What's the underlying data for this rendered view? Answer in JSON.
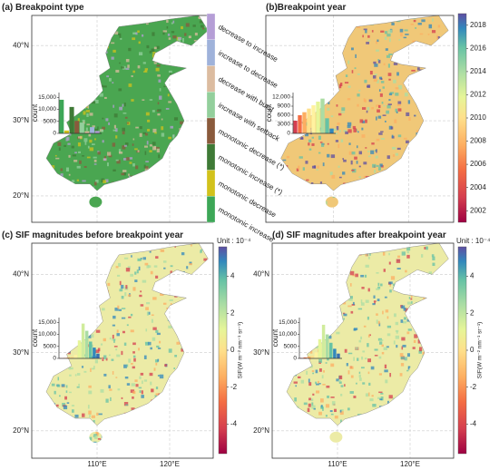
{
  "lat_labels": [
    "40°N",
    "30°N",
    "20°N"
  ],
  "lon_labels": [
    "110°E",
    "120°E"
  ],
  "panels": [
    {
      "title": "(a) Breakpoint type",
      "legend": [
        {
          "label": "decrease to increase",
          "color": "#b59ed6"
        },
        {
          "label": "increase to decrease",
          "color": "#9fb2da"
        },
        {
          "label": "decrease with burst",
          "color": "#dcbca0"
        },
        {
          "label": "increase with setback",
          "color": "#93cf9c"
        },
        {
          "label": "monotonic decrease (*)",
          "color": "#8a5a3c"
        },
        {
          "label": "monotonic increase (*)",
          "color": "#3f7a36"
        },
        {
          "label": "monotonic decrease",
          "color": "#d2c21c"
        },
        {
          "label": "monotonic increase",
          "color": "#3da757"
        }
      ],
      "hist": {
        "ylabel": "count",
        "ylim": [
          0,
          17000
        ],
        "yticks": [
          0,
          5000,
          {
            "value": 10000,
            "label": "10,000"
          },
          {
            "value": 15000,
            "label": "15,000"
          }
        ],
        "values": [
          14000,
          1200,
          11000,
          5200,
          4500,
          900,
          2600,
          1000
        ],
        "colors": [
          "#3da757",
          "#d2c21c",
          "#3f7a36",
          "#8a5a3c",
          "#93cf9c",
          "#dcbca0",
          "#9fb2da",
          "#b59ed6"
        ]
      }
    },
    {
      "title": "(b)Breakpoint year",
      "hist": {
        "ylabel": "count",
        "ylim": [
          0,
          13500
        ],
        "yticks": [
          0,
          3000,
          6000,
          9000,
          {
            "value": 12000,
            "label": "12,000"
          }
        ],
        "values": [
          4200,
          6000,
          7000,
          8200,
          9300,
          10500,
          11500,
          5000,
          1600
        ],
        "colors": [
          "#d53e4f",
          "#f46d43",
          "#fdae61",
          "#fee08b",
          "#fff2a0",
          "#e6f598",
          "#abdda4",
          "#66c2a5",
          "#3288bd"
        ]
      }
    },
    {
      "title": "(c) SIF magnitudes before breakpoint year",
      "hist": {
        "ylabel": "count",
        "ylim": [
          0,
          17000
        ],
        "yticks": [
          0,
          5000,
          {
            "value": 10000,
            "label": "10,000"
          },
          {
            "value": 15000,
            "label": "15,000"
          }
        ],
        "values": [
          100,
          200,
          400,
          700,
          1500,
          7500,
          14500,
          11500,
          7000,
          4500,
          2000
        ],
        "colors": [
          "#d53e4f",
          "#f46d43",
          "#fdae61",
          "#fee08b",
          "#fff2a0",
          "#e6f598",
          "#d0ec9c",
          "#abdda4",
          "#66c2a5",
          "#3288bd",
          "#3a6fb0"
        ]
      }
    },
    {
      "title": "(d) SIF magnitudes after breakpoint year",
      "hist": {
        "ylabel": "count",
        "ylim": [
          0,
          17000
        ],
        "yticks": [
          0,
          5000,
          {
            "value": 10000,
            "label": "10,000"
          },
          {
            "value": 15000,
            "label": "15,000"
          }
        ],
        "values": [
          200,
          400,
          700,
          1000,
          2500,
          8000,
          14000,
          10000,
          6500,
          4000,
          2000
        ],
        "colors": [
          "#d53e4f",
          "#f46d43",
          "#fdae61",
          "#fee08b",
          "#fff2a0",
          "#e6f598",
          "#d0ec9c",
          "#abdda4",
          "#66c2a5",
          "#3288bd",
          "#3a6fb0"
        ]
      }
    }
  ],
  "year_colorbar": {
    "lim": [
      2001,
      2019
    ],
    "ticks": [
      2002,
      2004,
      2006,
      2008,
      2010,
      2012,
      2014,
      2016,
      2018
    ]
  },
  "sif_colorbar": {
    "unit": "Unit : 10⁻⁴",
    "label": "SIF(W m⁻² nm⁻¹ sr⁻¹)",
    "lim": [
      -5.6,
      5.6
    ],
    "ticks": [
      4,
      2,
      0,
      -2,
      -4
    ]
  }
}
